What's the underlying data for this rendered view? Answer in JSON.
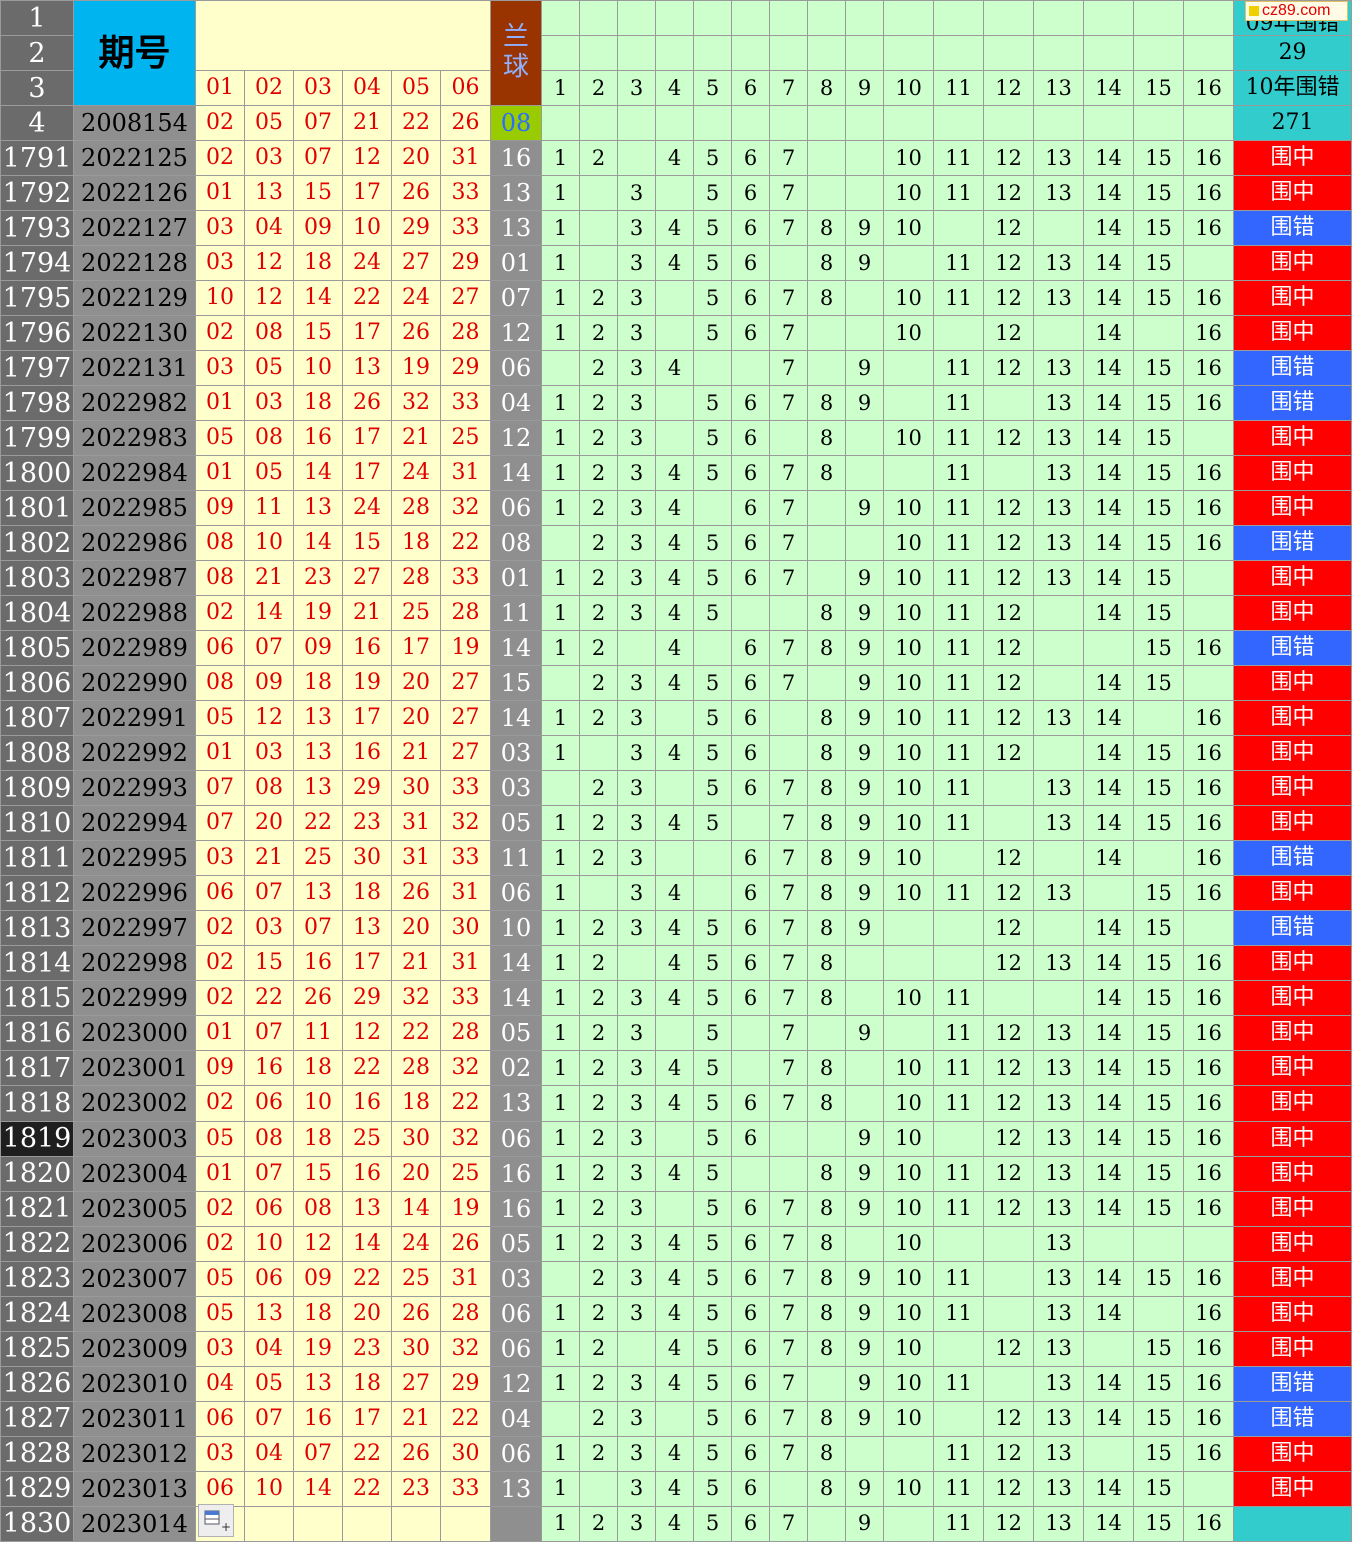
{
  "watermark": "cz89.com",
  "header": {
    "row_numbers": [
      "1",
      "2",
      "3",
      "4"
    ],
    "issue_header": "期号",
    "blue_header": "兰球",
    "red_cols": [
      "01",
      "02",
      "03",
      "04",
      "05",
      "06"
    ],
    "num_cols": [
      "1",
      "2",
      "3",
      "4",
      "5",
      "6",
      "7",
      "8",
      "9",
      "10",
      "11",
      "12",
      "13",
      "14",
      "15",
      "16"
    ],
    "res_rows": [
      "09年围错",
      "29",
      "10年围错",
      "271"
    ],
    "first": {
      "issue": "2008154",
      "reds": [
        "02",
        "05",
        "07",
        "21",
        "22",
        "26"
      ],
      "blue": "08"
    }
  },
  "labels": {
    "hit": "围中",
    "miss": "围错"
  },
  "colors": {
    "hit": "#ff0000",
    "miss": "#3366ff",
    "green": "#ccffcc",
    "red_text": "#e00000",
    "issue_header": "#00b4f0",
    "blue_header": "#993300"
  },
  "selected_row": "1819",
  "rows": [
    {
      "row": "1791",
      "issue": "2022125",
      "reds": [
        "02",
        "03",
        "07",
        "12",
        "20",
        "31"
      ],
      "blue": "16",
      "nums": [
        "1",
        "2",
        "",
        "4",
        "5",
        "6",
        "7",
        "",
        "",
        "10",
        "11",
        "12",
        "13",
        "14",
        "15",
        "16"
      ],
      "res": "hit"
    },
    {
      "row": "1792",
      "issue": "2022126",
      "reds": [
        "01",
        "13",
        "15",
        "17",
        "26",
        "33"
      ],
      "blue": "13",
      "nums": [
        "1",
        "",
        "3",
        "",
        "5",
        "6",
        "7",
        "",
        "",
        "10",
        "11",
        "12",
        "13",
        "14",
        "15",
        "16"
      ],
      "res": "hit"
    },
    {
      "row": "1793",
      "issue": "2022127",
      "reds": [
        "03",
        "04",
        "09",
        "10",
        "29",
        "33"
      ],
      "blue": "13",
      "nums": [
        "1",
        "",
        "3",
        "4",
        "5",
        "6",
        "7",
        "8",
        "9",
        "10",
        "",
        "12",
        "",
        "14",
        "15",
        "16"
      ],
      "res": "miss"
    },
    {
      "row": "1794",
      "issue": "2022128",
      "reds": [
        "03",
        "12",
        "18",
        "24",
        "27",
        "29"
      ],
      "blue": "01",
      "nums": [
        "1",
        "",
        "3",
        "4",
        "5",
        "6",
        "",
        "8",
        "9",
        "",
        "11",
        "12",
        "13",
        "14",
        "15",
        ""
      ],
      "res": "hit"
    },
    {
      "row": "1795",
      "issue": "2022129",
      "reds": [
        "10",
        "12",
        "14",
        "22",
        "24",
        "27"
      ],
      "blue": "07",
      "nums": [
        "1",
        "2",
        "3",
        "",
        "5",
        "6",
        "7",
        "8",
        "",
        "10",
        "11",
        "12",
        "13",
        "14",
        "15",
        "16"
      ],
      "res": "hit"
    },
    {
      "row": "1796",
      "issue": "2022130",
      "reds": [
        "02",
        "08",
        "15",
        "17",
        "26",
        "28"
      ],
      "blue": "12",
      "nums": [
        "1",
        "2",
        "3",
        "",
        "5",
        "6",
        "7",
        "",
        "",
        "10",
        "",
        "12",
        "",
        "14",
        "",
        "16"
      ],
      "res": "hit"
    },
    {
      "row": "1797",
      "issue": "2022131",
      "reds": [
        "03",
        "05",
        "10",
        "13",
        "19",
        "29"
      ],
      "blue": "06",
      "nums": [
        "",
        "2",
        "3",
        "4",
        "",
        "",
        "7",
        "",
        "9",
        "",
        "11",
        "12",
        "13",
        "14",
        "15",
        "16"
      ],
      "res": "miss"
    },
    {
      "row": "1798",
      "issue": "2022982",
      "reds": [
        "01",
        "03",
        "18",
        "26",
        "32",
        "33"
      ],
      "blue": "04",
      "nums": [
        "1",
        "2",
        "3",
        "",
        "5",
        "6",
        "7",
        "8",
        "9",
        "",
        "11",
        "",
        "13",
        "14",
        "15",
        "16"
      ],
      "res": "miss"
    },
    {
      "row": "1799",
      "issue": "2022983",
      "reds": [
        "05",
        "08",
        "16",
        "17",
        "21",
        "25"
      ],
      "blue": "12",
      "nums": [
        "1",
        "2",
        "3",
        "",
        "5",
        "6",
        "",
        "8",
        "",
        "10",
        "11",
        "12",
        "13",
        "14",
        "15",
        ""
      ],
      "res": "hit"
    },
    {
      "row": "1800",
      "issue": "2022984",
      "reds": [
        "01",
        "05",
        "14",
        "17",
        "24",
        "31"
      ],
      "blue": "14",
      "nums": [
        "1",
        "2",
        "3",
        "4",
        "5",
        "6",
        "7",
        "8",
        "",
        "",
        "11",
        "",
        "13",
        "14",
        "15",
        "16"
      ],
      "res": "hit"
    },
    {
      "row": "1801",
      "issue": "2022985",
      "reds": [
        "09",
        "11",
        "13",
        "24",
        "28",
        "32"
      ],
      "blue": "06",
      "nums": [
        "1",
        "2",
        "3",
        "4",
        "",
        "6",
        "7",
        "",
        "9",
        "10",
        "11",
        "12",
        "13",
        "14",
        "15",
        "16"
      ],
      "res": "hit"
    },
    {
      "row": "1802",
      "issue": "2022986",
      "reds": [
        "08",
        "10",
        "14",
        "15",
        "18",
        "22"
      ],
      "blue": "08",
      "nums": [
        "",
        "2",
        "3",
        "4",
        "5",
        "6",
        "7",
        "",
        "",
        "10",
        "11",
        "12",
        "13",
        "14",
        "15",
        "16"
      ],
      "res": "miss"
    },
    {
      "row": "1803",
      "issue": "2022987",
      "reds": [
        "08",
        "21",
        "23",
        "27",
        "28",
        "33"
      ],
      "blue": "01",
      "nums": [
        "1",
        "2",
        "3",
        "4",
        "5",
        "6",
        "7",
        "",
        "9",
        "10",
        "11",
        "12",
        "13",
        "14",
        "15",
        ""
      ],
      "res": "hit"
    },
    {
      "row": "1804",
      "issue": "2022988",
      "reds": [
        "02",
        "14",
        "19",
        "21",
        "25",
        "28"
      ],
      "blue": "11",
      "nums": [
        "1",
        "2",
        "3",
        "4",
        "5",
        "",
        "",
        "8",
        "9",
        "10",
        "11",
        "12",
        "",
        "14",
        "15",
        ""
      ],
      "res": "hit"
    },
    {
      "row": "1805",
      "issue": "2022989",
      "reds": [
        "06",
        "07",
        "09",
        "16",
        "17",
        "19"
      ],
      "blue": "14",
      "nums": [
        "1",
        "2",
        "",
        "4",
        "",
        "6",
        "7",
        "8",
        "9",
        "10",
        "11",
        "12",
        "",
        "",
        "15",
        "16"
      ],
      "res": "miss"
    },
    {
      "row": "1806",
      "issue": "2022990",
      "reds": [
        "08",
        "09",
        "18",
        "19",
        "20",
        "27"
      ],
      "blue": "15",
      "nums": [
        "",
        "2",
        "3",
        "4",
        "5",
        "6",
        "7",
        "",
        "9",
        "10",
        "11",
        "12",
        "",
        "14",
        "15",
        ""
      ],
      "res": "hit"
    },
    {
      "row": "1807",
      "issue": "2022991",
      "reds": [
        "05",
        "12",
        "13",
        "17",
        "20",
        "27"
      ],
      "blue": "14",
      "nums": [
        "1",
        "2",
        "3",
        "",
        "5",
        "6",
        "",
        "8",
        "9",
        "10",
        "11",
        "12",
        "13",
        "14",
        "",
        "16"
      ],
      "res": "hit"
    },
    {
      "row": "1808",
      "issue": "2022992",
      "reds": [
        "01",
        "03",
        "13",
        "16",
        "21",
        "27"
      ],
      "blue": "03",
      "nums": [
        "1",
        "",
        "3",
        "4",
        "5",
        "6",
        "",
        "8",
        "9",
        "10",
        "11",
        "12",
        "",
        "14",
        "15",
        "16"
      ],
      "res": "hit"
    },
    {
      "row": "1809",
      "issue": "2022993",
      "reds": [
        "07",
        "08",
        "13",
        "29",
        "30",
        "33"
      ],
      "blue": "03",
      "nums": [
        "",
        "2",
        "3",
        "",
        "5",
        "6",
        "7",
        "8",
        "9",
        "10",
        "11",
        "",
        "13",
        "14",
        "15",
        "16"
      ],
      "res": "hit"
    },
    {
      "row": "1810",
      "issue": "2022994",
      "reds": [
        "07",
        "20",
        "22",
        "23",
        "31",
        "32"
      ],
      "blue": "05",
      "nums": [
        "1",
        "2",
        "3",
        "4",
        "5",
        "",
        "7",
        "8",
        "9",
        "10",
        "11",
        "",
        "13",
        "14",
        "15",
        "16"
      ],
      "res": "hit"
    },
    {
      "row": "1811",
      "issue": "2022995",
      "reds": [
        "03",
        "21",
        "25",
        "30",
        "31",
        "33"
      ],
      "blue": "11",
      "nums": [
        "1",
        "2",
        "3",
        "",
        "",
        "6",
        "7",
        "8",
        "9",
        "10",
        "",
        "12",
        "",
        "14",
        "",
        "16"
      ],
      "res": "miss"
    },
    {
      "row": "1812",
      "issue": "2022996",
      "reds": [
        "06",
        "07",
        "13",
        "18",
        "26",
        "31"
      ],
      "blue": "06",
      "nums": [
        "1",
        "",
        "3",
        "4",
        "",
        "6",
        "7",
        "8",
        "9",
        "10",
        "11",
        "12",
        "13",
        "",
        "15",
        "16"
      ],
      "res": "hit"
    },
    {
      "row": "1813",
      "issue": "2022997",
      "reds": [
        "02",
        "03",
        "07",
        "13",
        "20",
        "30"
      ],
      "blue": "10",
      "nums": [
        "1",
        "2",
        "3",
        "4",
        "5",
        "6",
        "7",
        "8",
        "9",
        "",
        "",
        "12",
        "",
        "14",
        "15",
        ""
      ],
      "res": "miss"
    },
    {
      "row": "1814",
      "issue": "2022998",
      "reds": [
        "02",
        "15",
        "16",
        "17",
        "21",
        "31"
      ],
      "blue": "14",
      "nums": [
        "1",
        "2",
        "",
        "4",
        "5",
        "6",
        "7",
        "8",
        "",
        "",
        "",
        "12",
        "13",
        "14",
        "15",
        "16"
      ],
      "res": "hit"
    },
    {
      "row": "1815",
      "issue": "2022999",
      "reds": [
        "02",
        "22",
        "26",
        "29",
        "32",
        "33"
      ],
      "blue": "14",
      "nums": [
        "1",
        "2",
        "3",
        "4",
        "5",
        "6",
        "7",
        "8",
        "",
        "10",
        "11",
        "",
        "",
        "14",
        "15",
        "16"
      ],
      "res": "hit"
    },
    {
      "row": "1816",
      "issue": "2023000",
      "reds": [
        "01",
        "07",
        "11",
        "12",
        "22",
        "28"
      ],
      "blue": "05",
      "nums": [
        "1",
        "2",
        "3",
        "",
        "5",
        "",
        "7",
        "",
        "9",
        "",
        "11",
        "12",
        "13",
        "14",
        "15",
        "16"
      ],
      "res": "hit"
    },
    {
      "row": "1817",
      "issue": "2023001",
      "reds": [
        "09",
        "16",
        "18",
        "22",
        "28",
        "32"
      ],
      "blue": "02",
      "nums": [
        "1",
        "2",
        "3",
        "4",
        "5",
        "",
        "7",
        "8",
        "",
        "10",
        "11",
        "12",
        "13",
        "14",
        "15",
        "16"
      ],
      "res": "hit"
    },
    {
      "row": "1818",
      "issue": "2023002",
      "reds": [
        "02",
        "06",
        "10",
        "16",
        "18",
        "22"
      ],
      "blue": "13",
      "nums": [
        "1",
        "2",
        "3",
        "4",
        "5",
        "6",
        "7",
        "8",
        "",
        "10",
        "11",
        "12",
        "13",
        "14",
        "15",
        "16"
      ],
      "res": "hit"
    },
    {
      "row": "1819",
      "issue": "2023003",
      "reds": [
        "05",
        "08",
        "18",
        "25",
        "30",
        "32"
      ],
      "blue": "06",
      "nums": [
        "1",
        "2",
        "3",
        "",
        "5",
        "6",
        "",
        "",
        "9",
        "10",
        "",
        "12",
        "13",
        "14",
        "15",
        "16"
      ],
      "res": "hit"
    },
    {
      "row": "1820",
      "issue": "2023004",
      "reds": [
        "01",
        "07",
        "15",
        "16",
        "20",
        "25"
      ],
      "blue": "16",
      "nums": [
        "1",
        "2",
        "3",
        "4",
        "5",
        "",
        "",
        "8",
        "9",
        "10",
        "11",
        "12",
        "13",
        "14",
        "15",
        "16"
      ],
      "res": "hit"
    },
    {
      "row": "1821",
      "issue": "2023005",
      "reds": [
        "02",
        "06",
        "08",
        "13",
        "14",
        "19"
      ],
      "blue": "16",
      "nums": [
        "1",
        "2",
        "3",
        "",
        "5",
        "6",
        "7",
        "8",
        "9",
        "10",
        "11",
        "12",
        "13",
        "14",
        "15",
        "16"
      ],
      "res": "hit"
    },
    {
      "row": "1822",
      "issue": "2023006",
      "reds": [
        "02",
        "10",
        "12",
        "14",
        "24",
        "26"
      ],
      "blue": "05",
      "nums": [
        "1",
        "2",
        "3",
        "4",
        "5",
        "6",
        "7",
        "8",
        "",
        "10",
        "",
        "",
        "13",
        "",
        "",
        ""
      ],
      "res": "hit"
    },
    {
      "row": "1823",
      "issue": "2023007",
      "reds": [
        "05",
        "06",
        "09",
        "22",
        "25",
        "31"
      ],
      "blue": "03",
      "nums": [
        "",
        "2",
        "3",
        "4",
        "5",
        "6",
        "7",
        "8",
        "9",
        "10",
        "11",
        "",
        "13",
        "14",
        "15",
        "16"
      ],
      "res": "hit"
    },
    {
      "row": "1824",
      "issue": "2023008",
      "reds": [
        "05",
        "13",
        "18",
        "20",
        "26",
        "28"
      ],
      "blue": "06",
      "nums": [
        "1",
        "2",
        "3",
        "4",
        "5",
        "6",
        "7",
        "8",
        "9",
        "10",
        "11",
        "",
        "13",
        "14",
        "",
        "16"
      ],
      "res": "hit"
    },
    {
      "row": "1825",
      "issue": "2023009",
      "reds": [
        "03",
        "04",
        "19",
        "23",
        "30",
        "32"
      ],
      "blue": "06",
      "nums": [
        "1",
        "2",
        "",
        "4",
        "5",
        "6",
        "7",
        "8",
        "9",
        "10",
        "",
        "12",
        "13",
        "",
        "15",
        "16"
      ],
      "res": "hit"
    },
    {
      "row": "1826",
      "issue": "2023010",
      "reds": [
        "04",
        "05",
        "13",
        "18",
        "27",
        "29"
      ],
      "blue": "12",
      "nums": [
        "1",
        "2",
        "3",
        "4",
        "5",
        "6",
        "7",
        "",
        "9",
        "10",
        "11",
        "",
        "13",
        "14",
        "15",
        "16"
      ],
      "res": "miss"
    },
    {
      "row": "1827",
      "issue": "2023011",
      "reds": [
        "06",
        "07",
        "16",
        "17",
        "21",
        "22"
      ],
      "blue": "04",
      "nums": [
        "",
        "2",
        "3",
        "",
        "5",
        "6",
        "7",
        "8",
        "9",
        "10",
        "",
        "12",
        "13",
        "14",
        "15",
        "16"
      ],
      "res": "miss"
    },
    {
      "row": "1828",
      "issue": "2023012",
      "reds": [
        "03",
        "04",
        "07",
        "22",
        "26",
        "30"
      ],
      "blue": "06",
      "nums": [
        "1",
        "2",
        "3",
        "4",
        "5",
        "6",
        "7",
        "8",
        "",
        "",
        "11",
        "12",
        "13",
        "",
        "15",
        "16"
      ],
      "res": "hit"
    },
    {
      "row": "1829",
      "issue": "2023013",
      "reds": [
        "06",
        "10",
        "14",
        "22",
        "23",
        "33"
      ],
      "blue": "13",
      "nums": [
        "1",
        "",
        "3",
        "4",
        "5",
        "6",
        "",
        "8",
        "9",
        "10",
        "11",
        "12",
        "13",
        "14",
        "15",
        ""
      ],
      "res": "hit"
    },
    {
      "row": "1830",
      "issue": "2023014",
      "reds": [
        "",
        "",
        "",
        "",
        "",
        ""
      ],
      "blue": "",
      "nums": [
        "1",
        "2",
        "3",
        "4",
        "5",
        "6",
        "7",
        "",
        "9",
        "",
        "11",
        "12",
        "13",
        "14",
        "15",
        "16"
      ],
      "res": "empty"
    }
  ]
}
